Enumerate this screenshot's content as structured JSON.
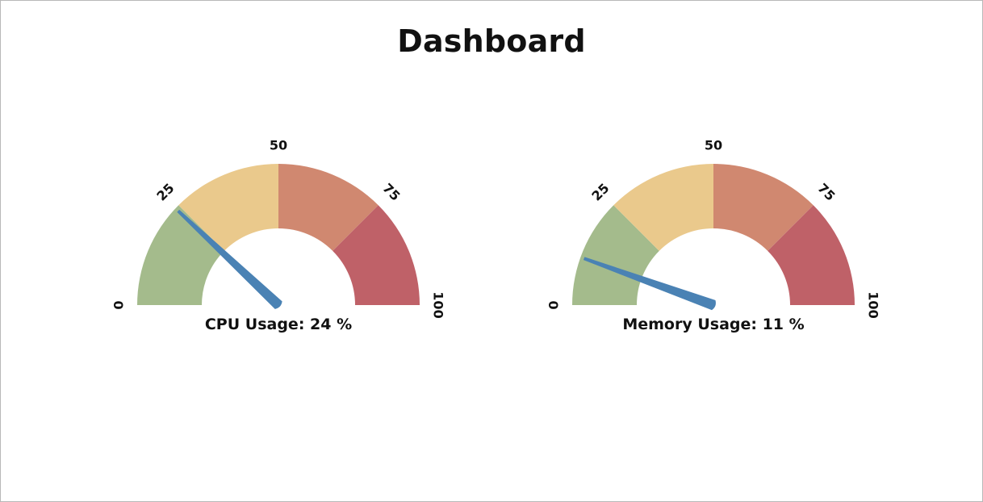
{
  "page": {
    "title": "Dashboard"
  },
  "colors": {
    "band_1": "#a4bb8c",
    "band_2": "#eac98c",
    "band_3": "#d08870",
    "band_4": "#bf6168",
    "needle": "#4a82b4"
  },
  "gauges": [
    {
      "id": "cpu",
      "label": "CPU Usage",
      "value": 24,
      "unit": "%",
      "caption": "CPU Usage: 24 %",
      "min": 0,
      "max": 100,
      "ticks": [
        {
          "value": 0,
          "label": "0"
        },
        {
          "value": 25,
          "label": "25"
        },
        {
          "value": 50,
          "label": "50"
        },
        {
          "value": 75,
          "label": "75"
        },
        {
          "value": 100,
          "label": "100"
        }
      ],
      "bands": [
        {
          "from": 0,
          "to": 25,
          "color": "#a4bb8c"
        },
        {
          "from": 25,
          "to": 50,
          "color": "#eac98c"
        },
        {
          "from": 50,
          "to": 75,
          "color": "#d08870"
        },
        {
          "from": 75,
          "to": 100,
          "color": "#bf6168"
        }
      ]
    },
    {
      "id": "mem",
      "label": "Memory Usage",
      "value": 11,
      "unit": "%",
      "caption": "Memory Usage: 11 %",
      "min": 0,
      "max": 100,
      "ticks": [
        {
          "value": 0,
          "label": "0"
        },
        {
          "value": 25,
          "label": "25"
        },
        {
          "value": 50,
          "label": "50"
        },
        {
          "value": 75,
          "label": "75"
        },
        {
          "value": 100,
          "label": "100"
        }
      ],
      "bands": [
        {
          "from": 0,
          "to": 25,
          "color": "#a4bb8c"
        },
        {
          "from": 25,
          "to": 50,
          "color": "#eac98c"
        },
        {
          "from": 50,
          "to": 75,
          "color": "#d08870"
        },
        {
          "from": 75,
          "to": 100,
          "color": "#bf6168"
        }
      ]
    }
  ]
}
